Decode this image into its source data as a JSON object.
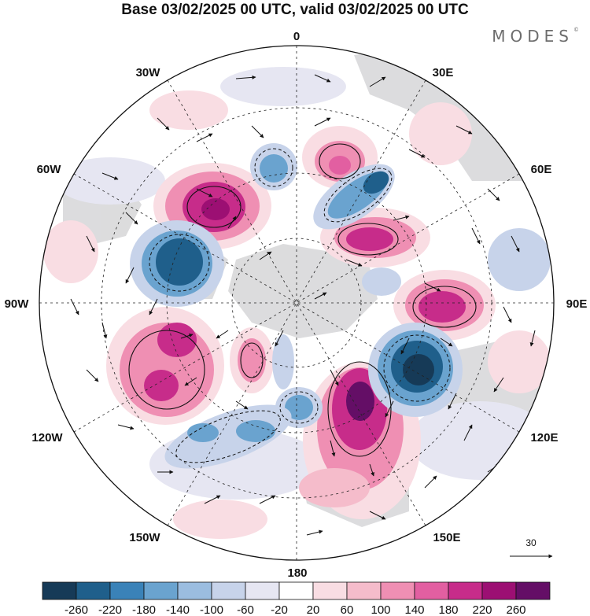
{
  "title": "Base 03/02/2025 00 UTC, valid 03/02/2025 00 UTC",
  "brand": "MODES",
  "brand_mark": "©",
  "longitude_labels": {
    "lon_0": "0",
    "lon_30e": "30E",
    "lon_60e": "60E",
    "lon_90e": "90E",
    "lon_120e": "120E",
    "lon_150e": "150E",
    "lon_180": "180",
    "lon_150w": "150W",
    "lon_120w": "120W",
    "lon_90w": "90W",
    "lon_60w": "60W",
    "lon_30w": "30W"
  },
  "reference_vector": {
    "value": "30"
  },
  "colorbar": {
    "ticks": [
      "-260",
      "-220",
      "-180",
      "-140",
      "-100",
      "-60",
      "-20",
      "20",
      "60",
      "100",
      "140",
      "180",
      "220",
      "260"
    ],
    "colors": [
      "#163a57",
      "#1f5f8b",
      "#3a82b8",
      "#6aa3cf",
      "#9bbde0",
      "#c7d3ea",
      "#e6e6f2",
      "#ffffff",
      "#f9dde3",
      "#f5bccb",
      "#ef8fb3",
      "#e25fa1",
      "#c72c8a",
      "#9c0f73",
      "#640e66"
    ]
  },
  "anomaly_centers": [
    {
      "sign": "positive",
      "level": 220
    },
    {
      "sign": "positive",
      "level": 140
    },
    {
      "sign": "positive",
      "level": 260
    },
    {
      "sign": "positive",
      "level": 180
    },
    {
      "sign": "positive",
      "level": 180
    },
    {
      "sign": "positive",
      "level": 140
    },
    {
      "sign": "positive",
      "level": 100
    },
    {
      "sign": "positive",
      "level": 100
    },
    {
      "sign": "negative",
      "level": -220
    },
    {
      "sign": "negative",
      "level": -260
    },
    {
      "sign": "negative",
      "level": -140
    },
    {
      "sign": "negative",
      "level": -140
    },
    {
      "sign": "negative",
      "level": -140
    },
    {
      "sign": "negative",
      "level": -140
    },
    {
      "sign": "negative",
      "level": -100
    }
  ]
}
